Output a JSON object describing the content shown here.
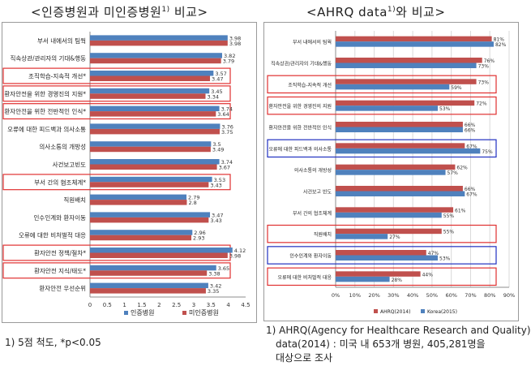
{
  "left_title": {
    "main": "<인증병원과 미인증병원",
    "sup": "1)",
    "end": " 비교>"
  },
  "right_title": {
    "main": "<AHRQ data",
    "sup": "1)",
    "end": "와 비교>"
  },
  "left_note": "1) 5점 척도, *p<0.05",
  "right_note": {
    "line1": "1)  AHRQ(Agency for Healthcare Research and Quality)",
    "line2": "data(2014) : 미국 내 653개 병원, 405,281명을",
    "line3": "대상으로 조사"
  },
  "colors": {
    "blue": "#4f81bd",
    "red": "#c0504d",
    "highlight_red": "#e03030",
    "highlight_blue": "#2030c0"
  },
  "chart_data": [
    {
      "type": "bar",
      "orientation": "horizontal",
      "categories": [
        "부서 내에서의 팀웍",
        "직속상관/관리자의 기대&행동",
        "조직학습-지속적 개선*",
        "환자안전을 위한 경영진의 지원*",
        "환자안전을 위한 전반적인 인식*",
        "오류에 대한 피드백과 의사소통",
        "의사소통의 개방성",
        "사건보고빈도",
        "부서 간의 협조체계*",
        "직원배치",
        "인수인계와 환자이동",
        "오류에 대한 비처벌적 대응",
        "환자안전 정책/절차*",
        "환자안전 지식/태도*",
        "환자안전 우선순위"
      ],
      "series": [
        {
          "name": "인증병원",
          "color": "#4f81bd",
          "values": [
            3.98,
            3.82,
            3.57,
            3.45,
            3.74,
            3.76,
            3.5,
            3.74,
            3.53,
            2.79,
            3.47,
            2.96,
            4.12,
            3.65,
            3.42
          ]
        },
        {
          "name": "미인증병원",
          "color": "#c0504d",
          "values": [
            3.98,
            3.79,
            3.47,
            3.34,
            3.64,
            3.75,
            3.49,
            3.67,
            3.43,
            2.8,
            3.43,
            2.93,
            3.98,
            3.38,
            3.35
          ]
        }
      ],
      "value_labels": [
        [
          "3.98",
          "3.82",
          "3.57",
          "3.45",
          "3.74",
          "3.76",
          "3.5",
          "3.74",
          "3.53",
          "2.79",
          "3.47",
          "2.96",
          "4.12",
          "3.65",
          "3.42"
        ],
        [
          "3.98",
          "3.79",
          "3.47",
          "3.34",
          "3.64",
          "3.75",
          "3.49",
          "3.67",
          "3.43",
          "2.8",
          "3.43",
          "2.93",
          "3.98",
          "3.38",
          "3.35"
        ]
      ],
      "xlim": [
        0,
        4.5
      ],
      "ticks": [
        0,
        0.5,
        1,
        1.5,
        2,
        2.5,
        3,
        3.5,
        4,
        4.5
      ],
      "tick_labels": [
        "0",
        "0.5",
        "1",
        "1.5",
        "2",
        "2.5",
        "3",
        "3.5",
        "4",
        "4.5"
      ],
      "highlighted": [
        {
          "category": 2,
          "color": "red"
        },
        {
          "category": 3,
          "color": "red"
        },
        {
          "category": 4,
          "color": "red"
        },
        {
          "category": 8,
          "color": "red"
        },
        {
          "category": 12,
          "color": "red"
        },
        {
          "category": 13,
          "color": "red"
        }
      ],
      "legend": "bottom"
    },
    {
      "type": "bar",
      "orientation": "horizontal",
      "categories": [
        "부서 내에서의 팀웍",
        "직속상관/관리자의 기대&행동",
        "조직학습-지속적 개선",
        "환자안전을 위한 경영진의 지원",
        "환자안전을 위한 전반적인 인식",
        "오류에 대한 피드백과 의사소통",
        "의사소통의 개방성",
        "사건보고 빈도",
        "부서 간의 협조체계",
        "직원배치",
        "인수인계와 환자이동",
        "오류에 대한 비처벌적 대응"
      ],
      "series": [
        {
          "name": "AHRQ(2014)",
          "color": "#c0504d",
          "values": [
            81,
            76,
            73,
            72,
            66,
            67,
            62,
            66,
            61,
            55,
            47,
            44
          ]
        },
        {
          "name": "Korea(2015)",
          "color": "#4f81bd",
          "values": [
            82,
            73,
            59,
            53,
            66,
            75,
            57,
            67,
            55,
            27,
            53,
            28
          ]
        }
      ],
      "value_labels": [
        [
          "81%",
          "76%",
          "73%",
          "72%",
          "66%",
          "67%",
          "62%",
          "66%",
          "61%",
          "55%",
          "47%",
          "44%"
        ],
        [
          "82%",
          "73%",
          "59%",
          "53%",
          "66%",
          "75%",
          "57%",
          "67%",
          "55%",
          "27%",
          "53%",
          "28%"
        ]
      ],
      "xlim": [
        0,
        90
      ],
      "ticks": [
        0,
        10,
        20,
        30,
        40,
        50,
        60,
        70,
        80,
        90
      ],
      "tick_labels": [
        "0%",
        "10%",
        "20%",
        "30%",
        "40%",
        "50%",
        "60%",
        "70%",
        "80%",
        "90%"
      ],
      "highlighted": [
        {
          "category": 2,
          "color": "red"
        },
        {
          "category": 3,
          "color": "red"
        },
        {
          "category": 5,
          "color": "blue"
        },
        {
          "category": 9,
          "color": "red"
        },
        {
          "category": 10,
          "color": "blue"
        },
        {
          "category": 11,
          "color": "red"
        }
      ],
      "legend": "bottom"
    }
  ]
}
